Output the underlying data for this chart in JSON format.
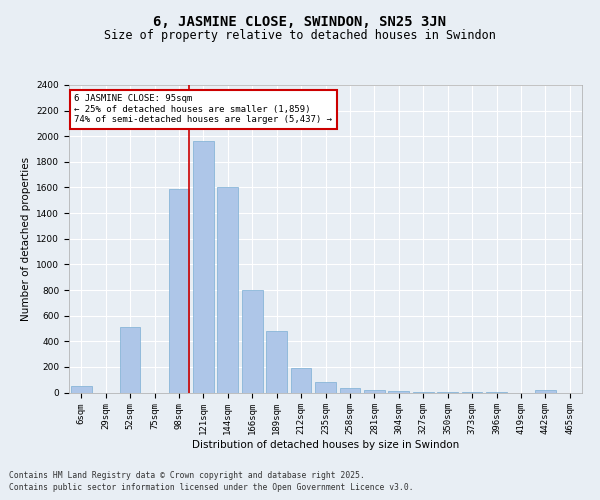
{
  "title": "6, JASMINE CLOSE, SWINDON, SN25 3JN",
  "subtitle": "Size of property relative to detached houses in Swindon",
  "xlabel": "Distribution of detached houses by size in Swindon",
  "ylabel": "Number of detached properties",
  "categories": [
    "6sqm",
    "29sqm",
    "52sqm",
    "75sqm",
    "98sqm",
    "121sqm",
    "144sqm",
    "166sqm",
    "189sqm",
    "212sqm",
    "235sqm",
    "258sqm",
    "281sqm",
    "304sqm",
    "327sqm",
    "350sqm",
    "373sqm",
    "396sqm",
    "419sqm",
    "442sqm",
    "465sqm"
  ],
  "values": [
    50,
    0,
    510,
    0,
    1590,
    1960,
    1600,
    800,
    480,
    195,
    85,
    35,
    20,
    10,
    5,
    5,
    3,
    2,
    0,
    20,
    0
  ],
  "bar_color": "#aec6e8",
  "bar_edge_color": "#7bafd4",
  "vline_color": "#cc0000",
  "vline_x": 4.42,
  "annotation_text": "6 JASMINE CLOSE: 95sqm\n← 25% of detached houses are smaller (1,859)\n74% of semi-detached houses are larger (5,437) →",
  "annotation_box_color": "#ffffff",
  "annotation_box_edge": "#cc0000",
  "ylim": [
    0,
    2400
  ],
  "yticks": [
    0,
    200,
    400,
    600,
    800,
    1000,
    1200,
    1400,
    1600,
    1800,
    2000,
    2200,
    2400
  ],
  "bg_color": "#e8eef4",
  "plot_bg_color": "#e8eef4",
  "grid_color": "#ffffff",
  "footer_line1": "Contains HM Land Registry data © Crown copyright and database right 2025.",
  "footer_line2": "Contains public sector information licensed under the Open Government Licence v3.0.",
  "title_fontsize": 10,
  "subtitle_fontsize": 8.5,
  "tick_fontsize": 6.5,
  "ylabel_fontsize": 7.5,
  "xlabel_fontsize": 7.5,
  "annotation_fontsize": 6.5
}
